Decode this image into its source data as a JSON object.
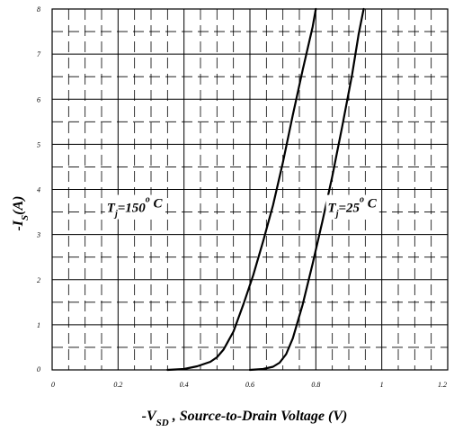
{
  "chart_data": {
    "type": "line",
    "title": "",
    "xlabel": {
      "prefix": "-V",
      "subscript": "SD",
      "suffix": " , Source-to-Drain Voltage (V)"
    },
    "ylabel": {
      "prefix": "-I",
      "subscript": "S",
      "suffix": "(A)"
    },
    "xlim": [
      0,
      1.2
    ],
    "ylim": [
      0,
      8
    ],
    "x_ticks": [
      "0",
      "0.2",
      "0.4",
      "0.6",
      "0.8",
      "1",
      "1.2"
    ],
    "y_ticks": [
      "0",
      "1",
      "2",
      "3",
      "4",
      "5",
      "6",
      "7",
      "8"
    ],
    "grid": true,
    "series": [
      {
        "x": [
          0.35,
          0.4,
          0.44,
          0.48,
          0.5,
          0.52,
          0.55,
          0.58,
          0.61,
          0.64,
          0.67,
          0.7,
          0.73,
          0.76,
          0.79,
          0.8
        ],
        "y": [
          0.0,
          0.02,
          0.08,
          0.18,
          0.28,
          0.45,
          0.85,
          1.45,
          2.1,
          2.85,
          3.65,
          4.6,
          5.65,
          6.65,
          7.6,
          8.0
        ]
      },
      {
        "x": [
          0.6,
          0.64,
          0.67,
          0.69,
          0.71,
          0.73,
          0.76,
          0.79,
          0.82,
          0.85,
          0.88,
          0.91,
          0.93,
          0.945
        ],
        "y": [
          0.0,
          0.02,
          0.07,
          0.16,
          0.35,
          0.7,
          1.45,
          2.35,
          3.3,
          4.3,
          5.4,
          6.55,
          7.45,
          8.0
        ]
      }
    ],
    "annotations": [
      {
        "base": "T",
        "subscript": "j",
        "value": "=150",
        "superscript": "o",
        "unit": " C",
        "at": [
          0.25,
          3.5
        ]
      },
      {
        "base": "T",
        "subscript": "j",
        "value": "=25",
        "superscript": "o",
        "unit": " C",
        "at": [
          0.91,
          3.5
        ]
      }
    ]
  }
}
